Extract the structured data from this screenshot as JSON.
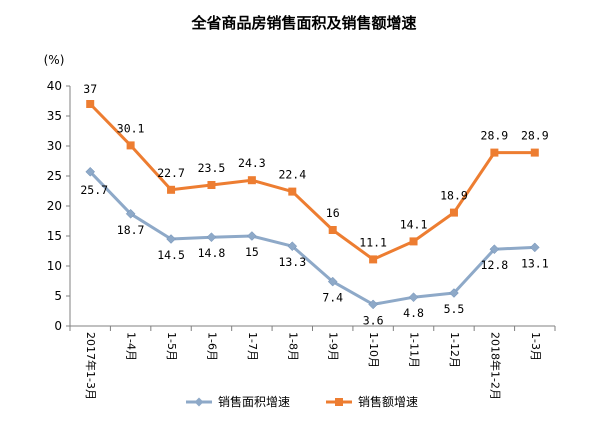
{
  "chart_data": {
    "type": "line",
    "title": "全省商品房销售面积及销售额增速",
    "unit_label": "(%)",
    "ylim": [
      0,
      40
    ],
    "y_ticks": [
      "0",
      "5",
      "10",
      "15",
      "20",
      "25",
      "30",
      "35",
      "40"
    ],
    "y_tick_values": [
      0,
      5,
      10,
      15,
      20,
      25,
      30,
      35,
      40
    ],
    "categories": [
      "2017年1-3月",
      "1-4月",
      "1-5月",
      "1-6月",
      "1-7月",
      "1-8月",
      "1-9月",
      "1-10月",
      "1-11月",
      "1-12月",
      "2018年1-2月",
      "1-3月"
    ],
    "grid": false,
    "legend_position": "bottom",
    "series": [
      {
        "name": "销售面积增速",
        "color": "#8EA9C8",
        "marker": "diamond",
        "values": [
          25.7,
          18.7,
          14.5,
          14.8,
          15,
          13.3,
          7.4,
          3.6,
          4.8,
          5.5,
          12.8,
          13.1
        ],
        "labels": [
          "25.7",
          "18.7",
          "14.5",
          "14.8",
          "15",
          "13.3",
          "7.4",
          "3.6",
          "4.8",
          "5.5",
          "12.8",
          "13.1"
        ]
      },
      {
        "name": "销售额增速",
        "color": "#ED7D31",
        "marker": "square",
        "values": [
          37,
          30.1,
          22.7,
          23.5,
          24.3,
          22.4,
          16,
          11.1,
          14.1,
          18.9,
          28.9,
          28.9
        ],
        "labels": [
          "37",
          "30.1",
          "22.7",
          "23.5",
          "24.3",
          "22.4",
          "16",
          "11.1",
          "14.1",
          "18.9",
          "28.9",
          "28.9"
        ]
      }
    ]
  }
}
